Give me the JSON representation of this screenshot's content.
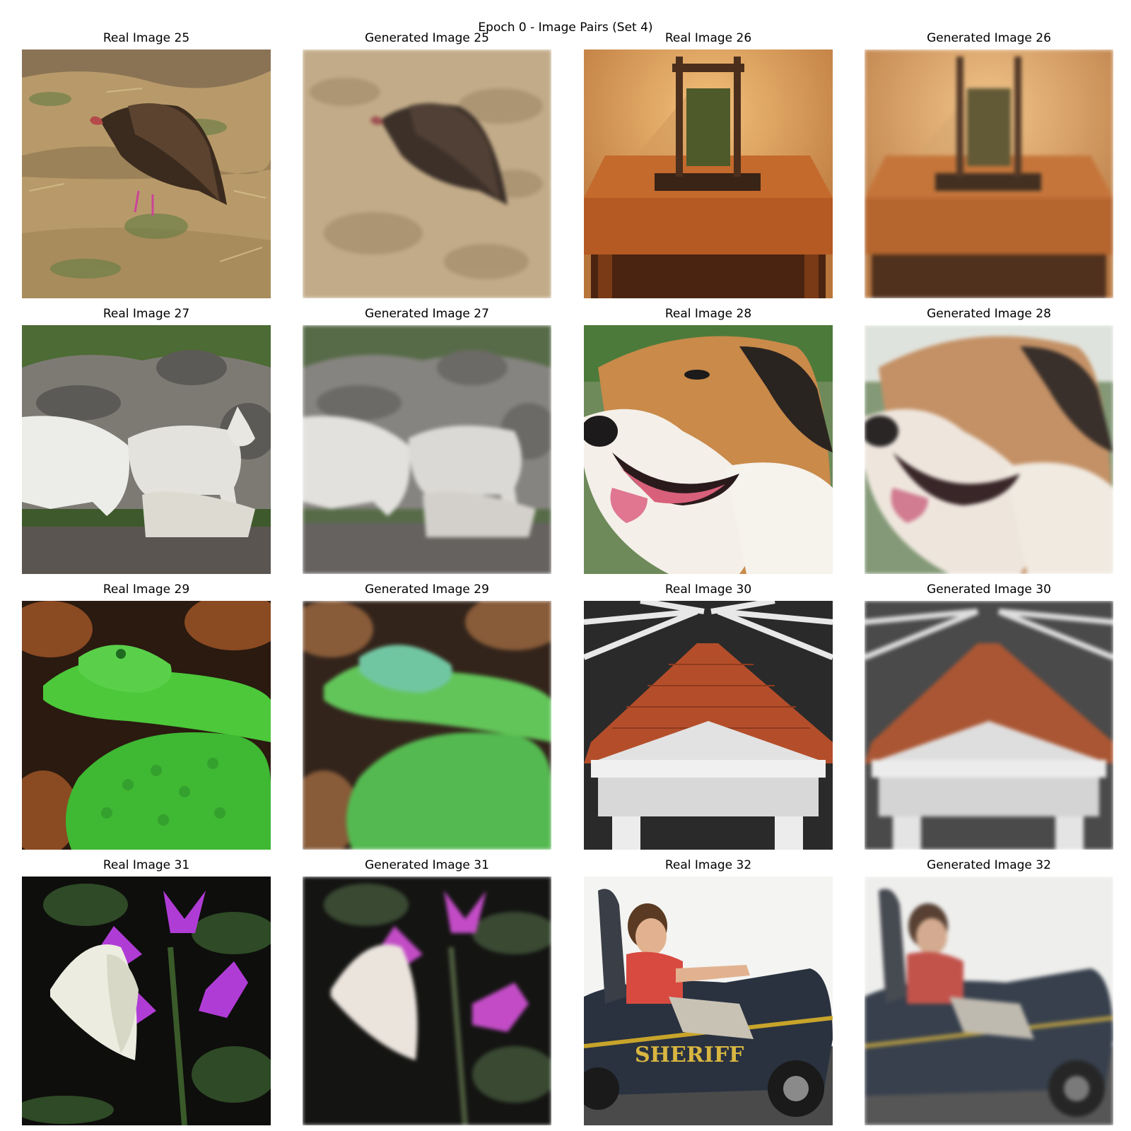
{
  "figure": {
    "title": "Epoch 0 - Image Pairs (Set 4)"
  },
  "rows": [
    {
      "pairs": [
        {
          "real_title": "Real Image 25",
          "generated_title": "Generated Image 25",
          "subject": "vulture-icon"
        },
        {
          "real_title": "Real Image 26",
          "generated_title": "Generated Image 26",
          "subject": "lamp-table-icon"
        }
      ]
    },
    {
      "pairs": [
        {
          "real_title": "Real Image 27",
          "generated_title": "Generated Image 27",
          "subject": "wolves-icon"
        },
        {
          "real_title": "Real Image 28",
          "generated_title": "Generated Image 28",
          "subject": "dog-icon"
        }
      ]
    },
    {
      "pairs": [
        {
          "real_title": "Real Image 29",
          "generated_title": "Generated Image 29",
          "subject": "snake-icon"
        },
        {
          "real_title": "Real Image 30",
          "generated_title": "Generated Image 30",
          "subject": "temple-model-icon"
        }
      ]
    },
    {
      "pairs": [
        {
          "real_title": "Real Image 31",
          "generated_title": "Generated Image 31",
          "subject": "butterfly-flower-icon"
        },
        {
          "real_title": "Real Image 32",
          "generated_title": "Generated Image 32",
          "subject": "sheriff-car-icon"
        }
      ]
    }
  ],
  "photo_text": {
    "car_lettering": "SHERIFF"
  },
  "colors": {
    "background": "#ffffff",
    "text": "#000000"
  }
}
